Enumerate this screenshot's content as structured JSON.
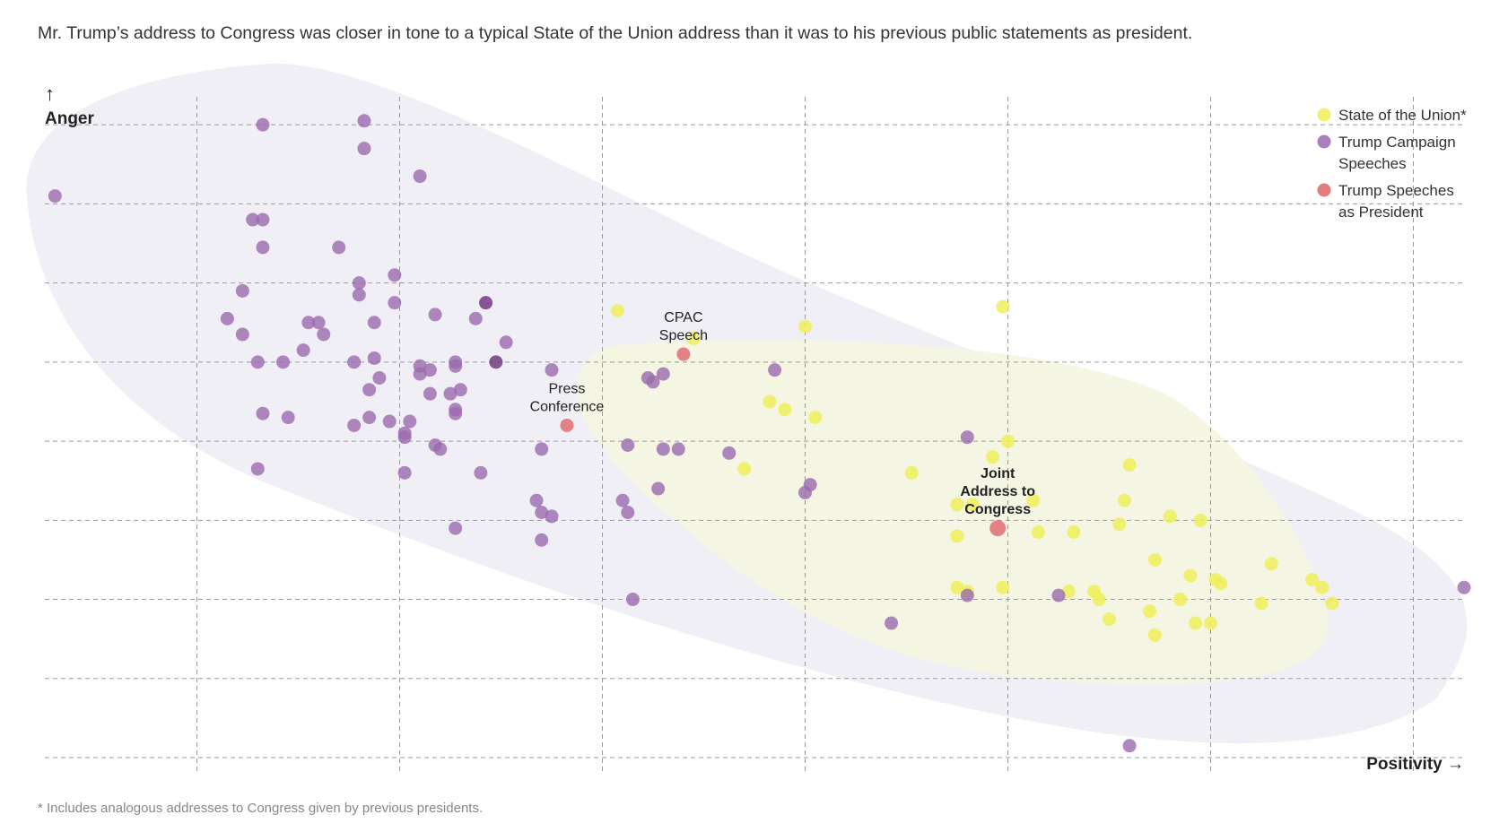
{
  "headline": "Mr. Trump’s address to Congress was closer in tone to a typical State of the Union address than it was to his previous public statements as president.",
  "footnote": "* Includes analogous addresses to Congress given by previous presidents.",
  "chart_data": {
    "type": "scatter",
    "title": "",
    "xlabel": "Positivity →",
    "ylabel": "Anger",
    "y_arrow": "↑",
    "xlim": [
      0,
      28
    ],
    "ylim": [
      0,
      17.5
    ],
    "grid": true,
    "tick_labels": false,
    "legend_position": "top-right",
    "colors": {
      "sotu": "#eeee5a",
      "campaign": "#9b6aae",
      "campaign_dark": "#6a2f7a",
      "president": "#e0656a",
      "hull_campaign": "#efecf4",
      "hull_sotu": "#f6f6e4"
    },
    "series": [
      {
        "name": "State of the Union*",
        "key": "sotu",
        "points": [
          [
            11.3,
            11.3
          ],
          [
            12.8,
            10.6
          ],
          [
            15.0,
            10.9
          ],
          [
            14.3,
            9.0
          ],
          [
            14.6,
            8.8
          ],
          [
            13.8,
            7.3
          ],
          [
            17.1,
            7.2
          ],
          [
            19.0,
            8.0
          ],
          [
            18.7,
            7.6
          ],
          [
            18.3,
            6.4
          ],
          [
            18.0,
            6.4
          ],
          [
            19.5,
            6.5
          ],
          [
            18.0,
            5.6
          ],
          [
            19.6,
            5.7
          ],
          [
            20.3,
            5.7
          ],
          [
            21.4,
            7.4
          ],
          [
            21.3,
            6.5
          ],
          [
            21.2,
            5.9
          ],
          [
            22.2,
            6.1
          ],
          [
            22.8,
            6.0
          ],
          [
            21.9,
            5.0
          ],
          [
            22.6,
            4.6
          ],
          [
            23.2,
            4.4
          ],
          [
            23.1,
            4.5
          ],
          [
            24.2,
            4.9
          ],
          [
            25.0,
            4.5
          ],
          [
            25.2,
            4.3
          ],
          [
            25.4,
            3.9
          ],
          [
            24.0,
            3.9
          ],
          [
            20.2,
            4.2
          ],
          [
            20.7,
            4.2
          ],
          [
            18.9,
            4.3
          ],
          [
            18.2,
            4.2
          ],
          [
            18.0,
            4.3
          ],
          [
            20.8,
            4.0
          ],
          [
            21.8,
            3.7
          ],
          [
            22.4,
            4.0
          ],
          [
            22.7,
            3.4
          ],
          [
            23.0,
            3.4
          ],
          [
            21.9,
            3.1
          ],
          [
            21.0,
            3.5
          ],
          [
            15.2,
            8.6
          ],
          [
            18.9,
            11.4
          ]
        ]
      },
      {
        "name": "Trump Campaign Speeches",
        "key": "campaign",
        "points": [
          [
            4.3,
            16.0
          ],
          [
            6.3,
            16.1
          ],
          [
            6.3,
            15.4
          ],
          [
            7.4,
            14.7
          ],
          [
            0.2,
            14.2
          ],
          [
            4.1,
            13.6
          ],
          [
            4.3,
            13.6
          ],
          [
            5.8,
            12.9
          ],
          [
            4.3,
            12.9
          ],
          [
            6.9,
            12.2
          ],
          [
            6.2,
            12.0
          ],
          [
            3.9,
            11.8
          ],
          [
            6.9,
            11.5
          ],
          [
            6.2,
            11.7
          ],
          [
            7.7,
            11.2
          ],
          [
            8.5,
            11.1
          ],
          [
            3.6,
            11.1
          ],
          [
            5.4,
            11.0
          ],
          [
            5.2,
            11.0
          ],
          [
            6.5,
            11.0
          ],
          [
            3.9,
            10.7
          ],
          [
            5.5,
            10.7
          ],
          [
            9.1,
            10.5
          ],
          [
            5.1,
            10.3
          ],
          [
            6.5,
            10.1
          ],
          [
            8.1,
            10.0
          ],
          [
            4.2,
            10.0
          ],
          [
            4.7,
            10.0
          ],
          [
            6.1,
            10.0
          ],
          [
            7.4,
            9.9
          ],
          [
            8.1,
            9.9
          ],
          [
            7.6,
            9.8
          ],
          [
            10.0,
            9.8
          ],
          [
            7.4,
            9.7
          ],
          [
            6.6,
            9.6
          ],
          [
            6.4,
            9.3
          ],
          [
            7.6,
            9.2
          ],
          [
            12.2,
            9.7
          ],
          [
            14.4,
            9.8
          ],
          [
            8.0,
            9.2
          ],
          [
            8.2,
            9.3
          ],
          [
            8.1,
            8.8
          ],
          [
            6.4,
            8.6
          ],
          [
            6.8,
            8.5
          ],
          [
            7.2,
            8.5
          ],
          [
            7.1,
            8.1
          ],
          [
            4.3,
            8.7
          ],
          [
            4.8,
            8.6
          ],
          [
            8.1,
            8.7
          ],
          [
            6.1,
            8.4
          ],
          [
            7.1,
            8.2
          ],
          [
            11.5,
            7.9
          ],
          [
            12.2,
            7.8
          ],
          [
            9.8,
            7.8
          ],
          [
            7.7,
            7.9
          ],
          [
            7.8,
            7.8
          ],
          [
            12.5,
            7.8
          ],
          [
            13.5,
            7.7
          ],
          [
            4.2,
            7.3
          ],
          [
            7.1,
            7.2
          ],
          [
            8.6,
            7.2
          ],
          [
            12.1,
            6.8
          ],
          [
            15.1,
            6.9
          ],
          [
            15.0,
            6.7
          ],
          [
            9.7,
            6.5
          ],
          [
            9.8,
            6.2
          ],
          [
            9.8,
            5.5
          ],
          [
            11.4,
            6.5
          ],
          [
            11.5,
            6.2
          ],
          [
            8.1,
            5.8
          ],
          [
            10.0,
            6.1
          ],
          [
            18.2,
            8.1
          ],
          [
            12.0,
            9.5
          ],
          [
            11.9,
            9.6
          ],
          [
            18.2,
            4.1
          ],
          [
            11.6,
            4.0
          ],
          [
            20.0,
            4.1
          ],
          [
            16.7,
            3.4
          ],
          [
            21.4,
            0.3
          ],
          [
            28.0,
            4.3
          ]
        ]
      },
      {
        "name": "Trump Campaign Speeches (overlapping)",
        "key": "campaign_dark",
        "points": [
          [
            8.7,
            11.5
          ],
          [
            8.9,
            10.0
          ]
        ]
      },
      {
        "name": "Trump Speeches as President",
        "key": "president",
        "points": [
          {
            "x": 12.6,
            "y": 10.2,
            "label": "CPAC\nSpeech"
          },
          {
            "x": 10.3,
            "y": 8.4,
            "label": "Press\nConference"
          },
          {
            "x": 18.8,
            "y": 5.8,
            "label": "Joint\nAddress to\nCongress",
            "highlight": true
          }
        ]
      }
    ]
  },
  "legend": [
    {
      "key": "sotu",
      "label": [
        "State of the Union*"
      ]
    },
    {
      "key": "campaign",
      "label": [
        "Trump Campaign",
        "Speeches"
      ]
    },
    {
      "key": "president",
      "label": [
        "Trump Speeches",
        "as President"
      ]
    }
  ]
}
